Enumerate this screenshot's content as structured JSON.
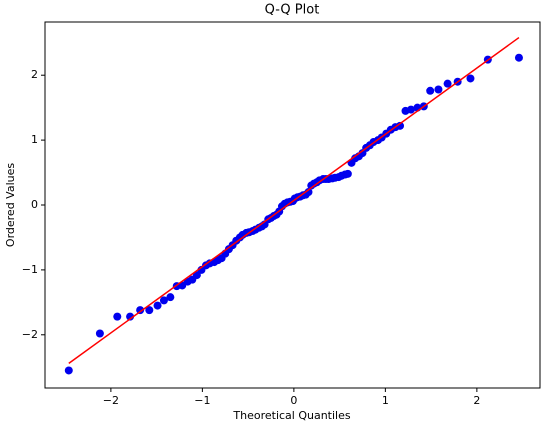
{
  "chart_data": {
    "type": "scatter",
    "title": "Q-Q Plot",
    "x_label": "Theoretical Quantiles",
    "y_label": "Ordered Values",
    "x": [
      -2.46,
      -2.12,
      -1.93,
      -1.79,
      -1.68,
      -1.58,
      -1.49,
      -1.42,
      -1.35,
      -1.28,
      -1.22,
      -1.16,
      -1.11,
      -1.06,
      -1.01,
      -0.96,
      -0.92,
      -0.87,
      -0.83,
      -0.79,
      -0.75,
      -0.71,
      -0.67,
      -0.63,
      -0.59,
      -0.56,
      -0.52,
      -0.49,
      -0.45,
      -0.42,
      -0.38,
      -0.35,
      -0.32,
      -0.28,
      -0.25,
      -0.22,
      -0.19,
      -0.16,
      -0.13,
      -0.1,
      -0.07,
      -0.04,
      -0.01,
      0.01,
      0.04,
      0.07,
      0.1,
      0.13,
      0.16,
      0.19,
      0.22,
      0.25,
      0.28,
      0.32,
      0.35,
      0.38,
      0.42,
      0.45,
      0.49,
      0.52,
      0.56,
      0.59,
      0.63,
      0.67,
      0.71,
      0.75,
      0.79,
      0.83,
      0.87,
      0.92,
      0.96,
      1.01,
      1.06,
      1.11,
      1.16,
      1.22,
      1.28,
      1.35,
      1.42,
      1.49,
      1.58,
      1.68,
      1.79,
      1.93,
      2.12,
      2.46
    ],
    "values": [
      -2.55,
      -1.98,
      -1.72,
      -1.72,
      -1.62,
      -1.62,
      -1.55,
      -1.47,
      -1.42,
      -1.25,
      -1.24,
      -1.18,
      -1.15,
      -1.08,
      -1.0,
      -0.93,
      -0.9,
      -0.88,
      -0.85,
      -0.82,
      -0.75,
      -0.68,
      -0.62,
      -0.55,
      -0.5,
      -0.46,
      -0.43,
      -0.42,
      -0.4,
      -0.38,
      -0.35,
      -0.33,
      -0.3,
      -0.22,
      -0.2,
      -0.17,
      -0.15,
      -0.1,
      -0.02,
      0.02,
      0.04,
      0.05,
      0.06,
      0.1,
      0.12,
      0.13,
      0.15,
      0.16,
      0.2,
      0.3,
      0.33,
      0.35,
      0.38,
      0.4,
      0.4,
      0.4,
      0.41,
      0.42,
      0.43,
      0.45,
      0.47,
      0.48,
      0.65,
      0.72,
      0.75,
      0.8,
      0.88,
      0.92,
      0.97,
      1.0,
      1.04,
      1.1,
      1.16,
      1.2,
      1.22,
      1.45,
      1.47,
      1.5,
      1.52,
      1.76,
      1.78,
      1.87,
      1.9,
      1.95,
      2.24,
      2.27
    ],
    "color": "#0000ee",
    "line": {
      "x": [
        -2.46,
        2.46
      ],
      "values": [
        -2.44,
        2.58
      ],
      "color": "#ff0000"
    },
    "xlim": [
      -2.72,
      2.69
    ],
    "ylim": [
      -2.82,
      2.82
    ],
    "xticks": [
      {
        "value": -2,
        "label": "−2"
      },
      {
        "value": -1,
        "label": "−1"
      },
      0,
      1,
      2
    ],
    "yticks": [
      {
        "value": -2,
        "label": "−2"
      },
      {
        "value": -1,
        "label": "−1"
      },
      0,
      1,
      2
    ]
  }
}
